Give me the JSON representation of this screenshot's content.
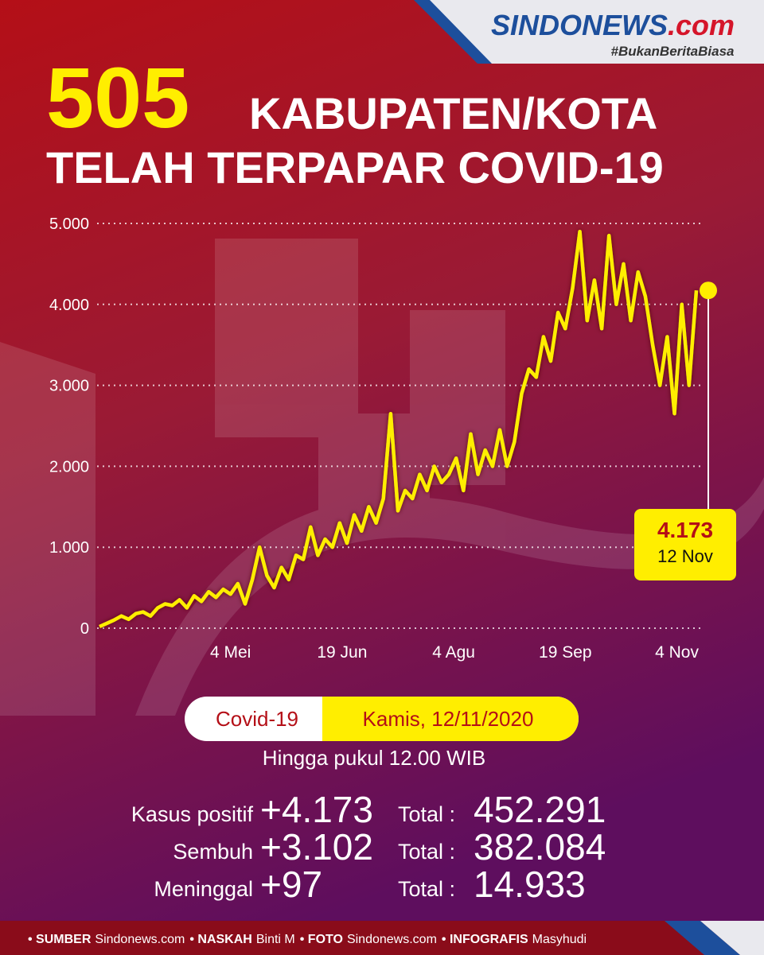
{
  "logo": {
    "brand": "SINDONEWS",
    "suffix": ".com",
    "tagline": "#BukanBeritaBiasa"
  },
  "headline": {
    "number": "505",
    "line1": "KABUPATEN/KOTA",
    "line2": "TELAH TERPAPAR COVID-19"
  },
  "chart_data": {
    "type": "line",
    "x": [
      71,
      74,
      77,
      80,
      83,
      86,
      89,
      92,
      95,
      98,
      101,
      104,
      107,
      110,
      113,
      116,
      119,
      122,
      125,
      128,
      131,
      134,
      137,
      140,
      143,
      146,
      149,
      152,
      155,
      158,
      161,
      164,
      167,
      170,
      173,
      176,
      179,
      182,
      185,
      188,
      191,
      194,
      197,
      200,
      203,
      206,
      209,
      212,
      215,
      218,
      221,
      224,
      227,
      230,
      233,
      236,
      239,
      242,
      245,
      248,
      251,
      254,
      257,
      260,
      263,
      266,
      269,
      272,
      275,
      278,
      281,
      284,
      287,
      290,
      293,
      296,
      299,
      302,
      305,
      308,
      311,
      314,
      317
    ],
    "series": [
      {
        "color": "#ffee00",
        "values": [
          20,
          60,
          100,
          150,
          110,
          180,
          200,
          150,
          250,
          300,
          280,
          350,
          250,
          400,
          330,
          450,
          380,
          480,
          420,
          550,
          300,
          600,
          1000,
          650,
          500,
          750,
          600,
          900,
          850,
          1250,
          900,
          1100,
          1000,
          1300,
          1050,
          1400,
          1200,
          1500,
          1300,
          1600,
          2650,
          1450,
          1700,
          1600,
          1900,
          1700,
          2000,
          1800,
          1900,
          2100,
          1700,
          2400,
          1900,
          2200,
          2000,
          2450,
          2000,
          2300,
          2900,
          3200,
          3100,
          3600,
          3300,
          3900,
          3700,
          4200,
          4900,
          3800,
          4300,
          3700,
          4850,
          4000,
          4500,
          3800,
          4400,
          4100,
          3500,
          3000,
          3600,
          2650,
          4000,
          3000,
          4173
        ],
        "value_labels": [
          null,
          null,
          null,
          null,
          null,
          null,
          null,
          null,
          null,
          null,
          null,
          null,
          null,
          null,
          null,
          null,
          null,
          null,
          null,
          null,
          null,
          null,
          null,
          null,
          null,
          null,
          null,
          null,
          null,
          null,
          null,
          null,
          null,
          null,
          null,
          null,
          null,
          null,
          null,
          null,
          null,
          null,
          null,
          null,
          null,
          null,
          null,
          null,
          null,
          null,
          null,
          null,
          null,
          null,
          null,
          null,
          null,
          null,
          null,
          null,
          null,
          null,
          null,
          null,
          null,
          null,
          null,
          null,
          null,
          null,
          null,
          null,
          null,
          null,
          null,
          null,
          null,
          null,
          null,
          null,
          null,
          null,
          "4.173"
        ]
      }
    ],
    "last_date": "12 Nov",
    "xlim": [
      70,
      318
    ],
    "xticks": [
      {
        "value": 125,
        "label": "4 Mei"
      },
      {
        "value": 171,
        "label": "19 Jun"
      },
      {
        "value": 217,
        "label": "4 Agu"
      },
      {
        "value": 263,
        "label": "19 Sep"
      },
      {
        "value": 309,
        "label": "4 Nov"
      }
    ],
    "ylim": [
      0,
      5000
    ],
    "yticks": [
      0,
      {
        "value": 1000,
        "label": "1.000"
      },
      {
        "value": 2000,
        "label": "2.000"
      },
      {
        "value": 3000,
        "label": "3.000"
      },
      {
        "value": 4000,
        "label": "4.000"
      },
      {
        "value": 5000,
        "label": "5.000"
      }
    ],
    "grid": true
  },
  "summary": {
    "topic": "Covid-19",
    "date": "Kamis, 12/11/2020",
    "note": "Hingga pukul 12.00 WIB",
    "rows": [
      {
        "label": "Kasus positif",
        "change": "+4.173",
        "total_label": "Total :",
        "total": "452.291"
      },
      {
        "label": "Sembuh",
        "change": "+3.102",
        "total_label": "Total :",
        "total": "382.084"
      },
      {
        "label": "Meninggal",
        "change": "+97",
        "total_label": "Total :",
        "total": "14.933"
      }
    ]
  },
  "footer": [
    {
      "key": "• SUMBER",
      "value": "Sindonews.com"
    },
    {
      "key": "• NASKAH",
      "value": "Binti M"
    },
    {
      "key": "• FOTO",
      "value": "Sindonews.com"
    },
    {
      "key": "• INFOGRAFIS",
      "value": "Masyhudi"
    }
  ]
}
